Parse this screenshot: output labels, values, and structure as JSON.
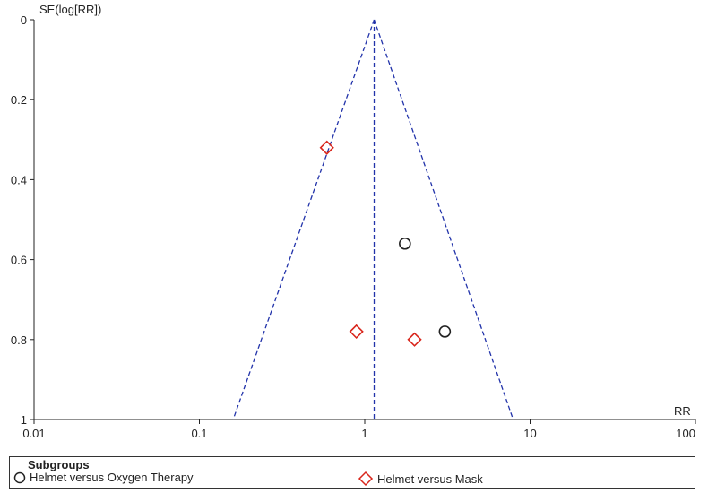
{
  "chart_data": {
    "type": "scatter",
    "title": "",
    "xlabel": "RR",
    "ylabel": "SE(log[RR])",
    "x_scale": "log",
    "xlim": [
      0.01,
      100
    ],
    "ylim": [
      0,
      1
    ],
    "y_inverted": true,
    "x_ticks": [
      "0.01",
      "0.1",
      "1",
      "10",
      "100"
    ],
    "y_ticks": [
      "0",
      "0.2",
      "0.4",
      "0.6",
      "0.8",
      "1"
    ],
    "pooled_estimate": 1.14,
    "funnel_limits_at_se_1": [
      0.16,
      7.9
    ],
    "series": [
      {
        "name": "Helmet versus Oxygen Therapy",
        "marker": "circle",
        "color": "#222222",
        "points": [
          {
            "x": 1.75,
            "y": 0.56
          },
          {
            "x": 3.05,
            "y": 0.78
          }
        ]
      },
      {
        "name": "Helmet versus Mask",
        "marker": "diamond",
        "color": "#d9261c",
        "points": [
          {
            "x": 0.59,
            "y": 0.32
          },
          {
            "x": 0.89,
            "y": 0.78
          },
          {
            "x": 2.0,
            "y": 0.8
          }
        ]
      }
    ],
    "legend": {
      "title": "Subgroups",
      "placement": "bottom"
    },
    "grid": false
  },
  "colors": {
    "funnel": "#2233aa",
    "axis": "#222222"
  }
}
